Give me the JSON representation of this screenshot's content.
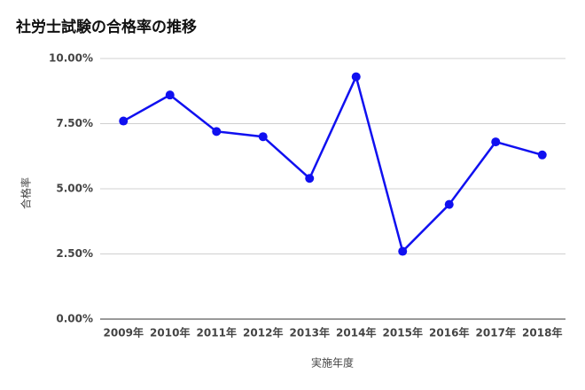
{
  "chart_data": {
    "type": "line",
    "title": "社労士試験の合格率の推移",
    "x_label": "実施年度",
    "y_label": "合格率",
    "categories": [
      "2009年",
      "2010年",
      "2011年",
      "2012年",
      "2013年",
      "2014年",
      "2015年",
      "2016年",
      "2017年",
      "2018年"
    ],
    "series": [
      {
        "name": "合格率",
        "color": "#1010f0",
        "values": [
          7.6,
          8.6,
          7.2,
          7.0,
          5.4,
          9.3,
          2.6,
          4.4,
          6.8,
          6.3
        ]
      }
    ],
    "ylim": [
      0,
      10
    ],
    "yticks": [
      {
        "value": 0,
        "label": "0.00%"
      },
      {
        "value": 2.5,
        "label": "2.50%"
      },
      {
        "value": 5,
        "label": "5.00%"
      },
      {
        "value": 7.5,
        "label": "7.50%"
      },
      {
        "value": 10,
        "label": "10.00%"
      }
    ],
    "grid": true
  }
}
